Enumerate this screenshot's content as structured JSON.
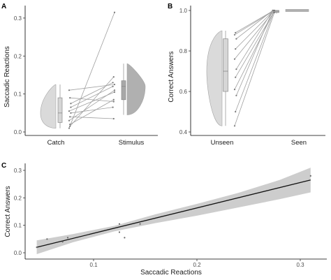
{
  "chart_data": [
    {
      "panel_label": "A",
      "type": "raincloud",
      "ylabel": "Saccadic Reactions",
      "categories": [
        "Catch",
        "Stimulus"
      ],
      "ylim": [
        0,
        0.32
      ],
      "yticks": [
        "0.0",
        "0.1",
        "0.2",
        "0.3"
      ],
      "paired_points": [
        [
          0.01,
          0.315
        ],
        [
          0.015,
          0.145
        ],
        [
          0.065,
          0.12
        ],
        [
          0.11,
          0.125
        ],
        [
          0.09,
          0.08
        ],
        [
          0.075,
          0.13
        ],
        [
          0.055,
          0.105
        ],
        [
          0.04,
          0.035
        ],
        [
          0.05,
          0.065
        ],
        [
          0.03,
          0.11
        ],
        [
          0.02,
          0.085
        ]
      ],
      "box": {
        "Catch": {
          "min": 0.01,
          "q1": 0.025,
          "median": 0.05,
          "q3": 0.09,
          "max": 0.125
        },
        "Stimulus": {
          "min": 0.045,
          "q1": 0.085,
          "median": 0.12,
          "q3": 0.135,
          "max": 0.18
        }
      },
      "fill_colors": {
        "Catch": "#d6d6d6",
        "Stimulus": "#a8a8a8"
      }
    },
    {
      "panel_label": "B",
      "type": "raincloud",
      "ylabel": "Correct Answers",
      "categories": [
        "Unseen",
        "Seen"
      ],
      "ylim": [
        0.4,
        1.0
      ],
      "yticks": [
        "0.4",
        "0.6",
        "0.8",
        "1.0"
      ],
      "paired_points": [
        [
          0.43,
          0.99
        ],
        [
          0.5,
          0.99
        ],
        [
          0.58,
          1.0
        ],
        [
          0.61,
          1.0
        ],
        [
          0.67,
          0.99
        ],
        [
          0.71,
          1.0
        ],
        [
          0.76,
          1.0
        ],
        [
          0.81,
          1.0
        ],
        [
          0.86,
          1.0
        ],
        [
          0.88,
          1.0
        ],
        [
          0.89,
          1.0
        ]
      ],
      "box": {
        "Unseen": {
          "min": 0.43,
          "q1": 0.6,
          "median": 0.7,
          "q3": 0.86,
          "max": 0.9
        },
        "Seen": {
          "min": 0.985,
          "q1": 0.99,
          "median": 1.0,
          "q3": 1.0,
          "max": 1.0
        }
      },
      "fill_colors": {
        "Unseen": "#d6d6d6",
        "Seen": "#a8a8a8"
      }
    },
    {
      "panel_label": "C",
      "type": "scatter",
      "xlabel": "Saccadic Reactions",
      "ylabel": "Correct Answers",
      "xlim": [
        0.04,
        0.315
      ],
      "ylim": [
        -0.01,
        0.3
      ],
      "xticks": [
        "0.1",
        "0.2",
        "0.3"
      ],
      "yticks": [
        "0.0",
        "0.1",
        "0.2",
        "0.3"
      ],
      "points": [
        {
          "x": 0.045,
          "y": 0.02
        },
        {
          "x": 0.055,
          "y": 0.05
        },
        {
          "x": 0.07,
          "y": 0.04
        },
        {
          "x": 0.075,
          "y": 0.055
        },
        {
          "x": 0.125,
          "y": 0.075
        },
        {
          "x": 0.125,
          "y": 0.105
        },
        {
          "x": 0.13,
          "y": 0.055
        },
        {
          "x": 0.145,
          "y": 0.105
        },
        {
          "x": 0.31,
          "y": 0.28
        }
      ],
      "fit_line": {
        "x": [
          0.045,
          0.31
        ],
        "y": [
          0.02,
          0.265
        ]
      },
      "ci_band": {
        "x": [
          0.045,
          0.08,
          0.12,
          0.16,
          0.2,
          0.24,
          0.28,
          0.31
        ],
        "lower": [
          -0.005,
          0.038,
          0.078,
          0.108,
          0.135,
          0.165,
          0.195,
          0.22
        ],
        "upper": [
          0.045,
          0.068,
          0.098,
          0.14,
          0.178,
          0.218,
          0.265,
          0.31
        ]
      }
    }
  ]
}
